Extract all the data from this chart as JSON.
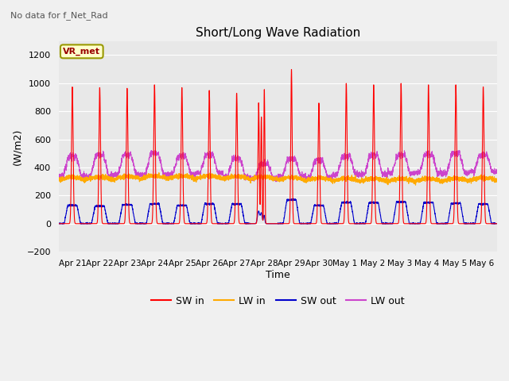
{
  "title": "Short/Long Wave Radiation",
  "subtitle": "No data for f_Net_Rad",
  "xlabel": "Time",
  "ylabel": "(W/m2)",
  "ylim": [
    -200,
    1300
  ],
  "yticks": [
    -200,
    0,
    200,
    400,
    600,
    800,
    1000,
    1200
  ],
  "legend_label": "VR_met",
  "series_labels": [
    "SW in",
    "LW in",
    "SW out",
    "LW out"
  ],
  "series_colors": [
    "#ff0000",
    "#ffaa00",
    "#0000cc",
    "#cc44cc"
  ],
  "n_days": 16,
  "xlabels": [
    "Apr 21",
    "Apr 22",
    "Apr 23",
    "Apr 24",
    "Apr 25",
    "Apr 26",
    "Apr 27",
    "Apr 28",
    "Apr 29",
    "Apr 30",
    "May 1",
    "May 2",
    "May 3",
    "May 4",
    "May 5",
    "May 6"
  ],
  "plot_bg": "#e8e8e8",
  "grid_color": "#ffffff",
  "fig_bg": "#f2f2f2"
}
